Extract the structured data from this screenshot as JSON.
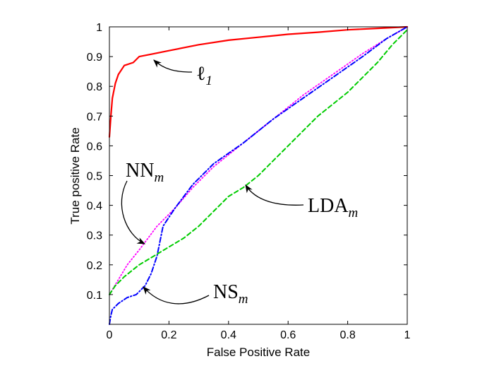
{
  "chart_data": {
    "type": "line",
    "title": "",
    "xlabel": "False Positive Rate",
    "ylabel": "True positive Rate",
    "xlim": [
      0,
      1
    ],
    "ylim": [
      0,
      1
    ],
    "xticks": [
      "0",
      "0.2",
      "0.4",
      "0.6",
      "0.8",
      "1"
    ],
    "yticks": [
      "0.1",
      "0.2",
      "0.3",
      "0.4",
      "0.5",
      "0.6",
      "0.7",
      "0.8",
      "0.9",
      "1"
    ],
    "grid": false,
    "legend": "none",
    "series": [
      {
        "label": "ℓ",
        "sub": "1",
        "color": "#ff0000",
        "style": "solid",
        "x": [
          0,
          0.005,
          0.01,
          0.02,
          0.03,
          0.05,
          0.08,
          0.1,
          0.15,
          0.2,
          0.3,
          0.4,
          0.5,
          0.6,
          0.7,
          0.8,
          0.9,
          1.0
        ],
        "y": [
          0.63,
          0.7,
          0.76,
          0.81,
          0.84,
          0.87,
          0.88,
          0.9,
          0.91,
          0.92,
          0.94,
          0.955,
          0.965,
          0.975,
          0.982,
          0.99,
          0.995,
          1.0
        ]
      },
      {
        "label": "NN",
        "sub": "m",
        "color": "#ff00ff",
        "style": "dotted",
        "x": [
          0,
          0.03,
          0.06,
          0.1,
          0.13,
          0.16,
          0.19,
          0.22,
          0.28,
          0.35,
          0.45,
          0.55,
          0.65,
          0.75,
          0.85,
          0.93,
          1.0
        ],
        "y": [
          0.1,
          0.15,
          0.2,
          0.25,
          0.29,
          0.33,
          0.36,
          0.39,
          0.46,
          0.53,
          0.61,
          0.69,
          0.77,
          0.84,
          0.91,
          0.96,
          1.0
        ]
      },
      {
        "label": "NS",
        "sub": "m",
        "color": "#0000ff",
        "style": "dashdot",
        "x": [
          0,
          0.005,
          0.01,
          0.03,
          0.06,
          0.09,
          0.12,
          0.14,
          0.16,
          0.18,
          0.22,
          0.28,
          0.35,
          0.45,
          0.55,
          0.65,
          0.75,
          0.85,
          0.93,
          1.0
        ],
        "y": [
          0,
          0.03,
          0.05,
          0.07,
          0.09,
          0.1,
          0.13,
          0.17,
          0.23,
          0.33,
          0.39,
          0.47,
          0.54,
          0.61,
          0.69,
          0.76,
          0.83,
          0.9,
          0.96,
          1.0
        ]
      },
      {
        "label": "LDA",
        "sub": "m",
        "color": "#00cc00",
        "style": "dashed",
        "x": [
          0,
          0.02,
          0.05,
          0.1,
          0.15,
          0.2,
          0.25,
          0.3,
          0.35,
          0.4,
          0.45,
          0.5,
          0.55,
          0.6,
          0.65,
          0.7,
          0.75,
          0.8,
          0.85,
          0.9,
          0.95,
          1.0
        ],
        "y": [
          0.1,
          0.13,
          0.16,
          0.2,
          0.23,
          0.26,
          0.29,
          0.33,
          0.38,
          0.43,
          0.46,
          0.5,
          0.55,
          0.6,
          0.65,
          0.7,
          0.74,
          0.78,
          0.83,
          0.88,
          0.94,
          0.99
        ]
      }
    ],
    "annotations": [
      {
        "text": "ℓ",
        "sub": "1",
        "point": [
          0.15,
          0.912
        ]
      },
      {
        "text": "NN",
        "sub": "m",
        "point": [
          0.12,
          0.27
        ]
      },
      {
        "text": "NS",
        "sub": "m",
        "point": [
          0.12,
          0.13
        ]
      },
      {
        "text": "LDA",
        "sub": "m",
        "point": [
          0.46,
          0.47
        ]
      }
    ]
  }
}
